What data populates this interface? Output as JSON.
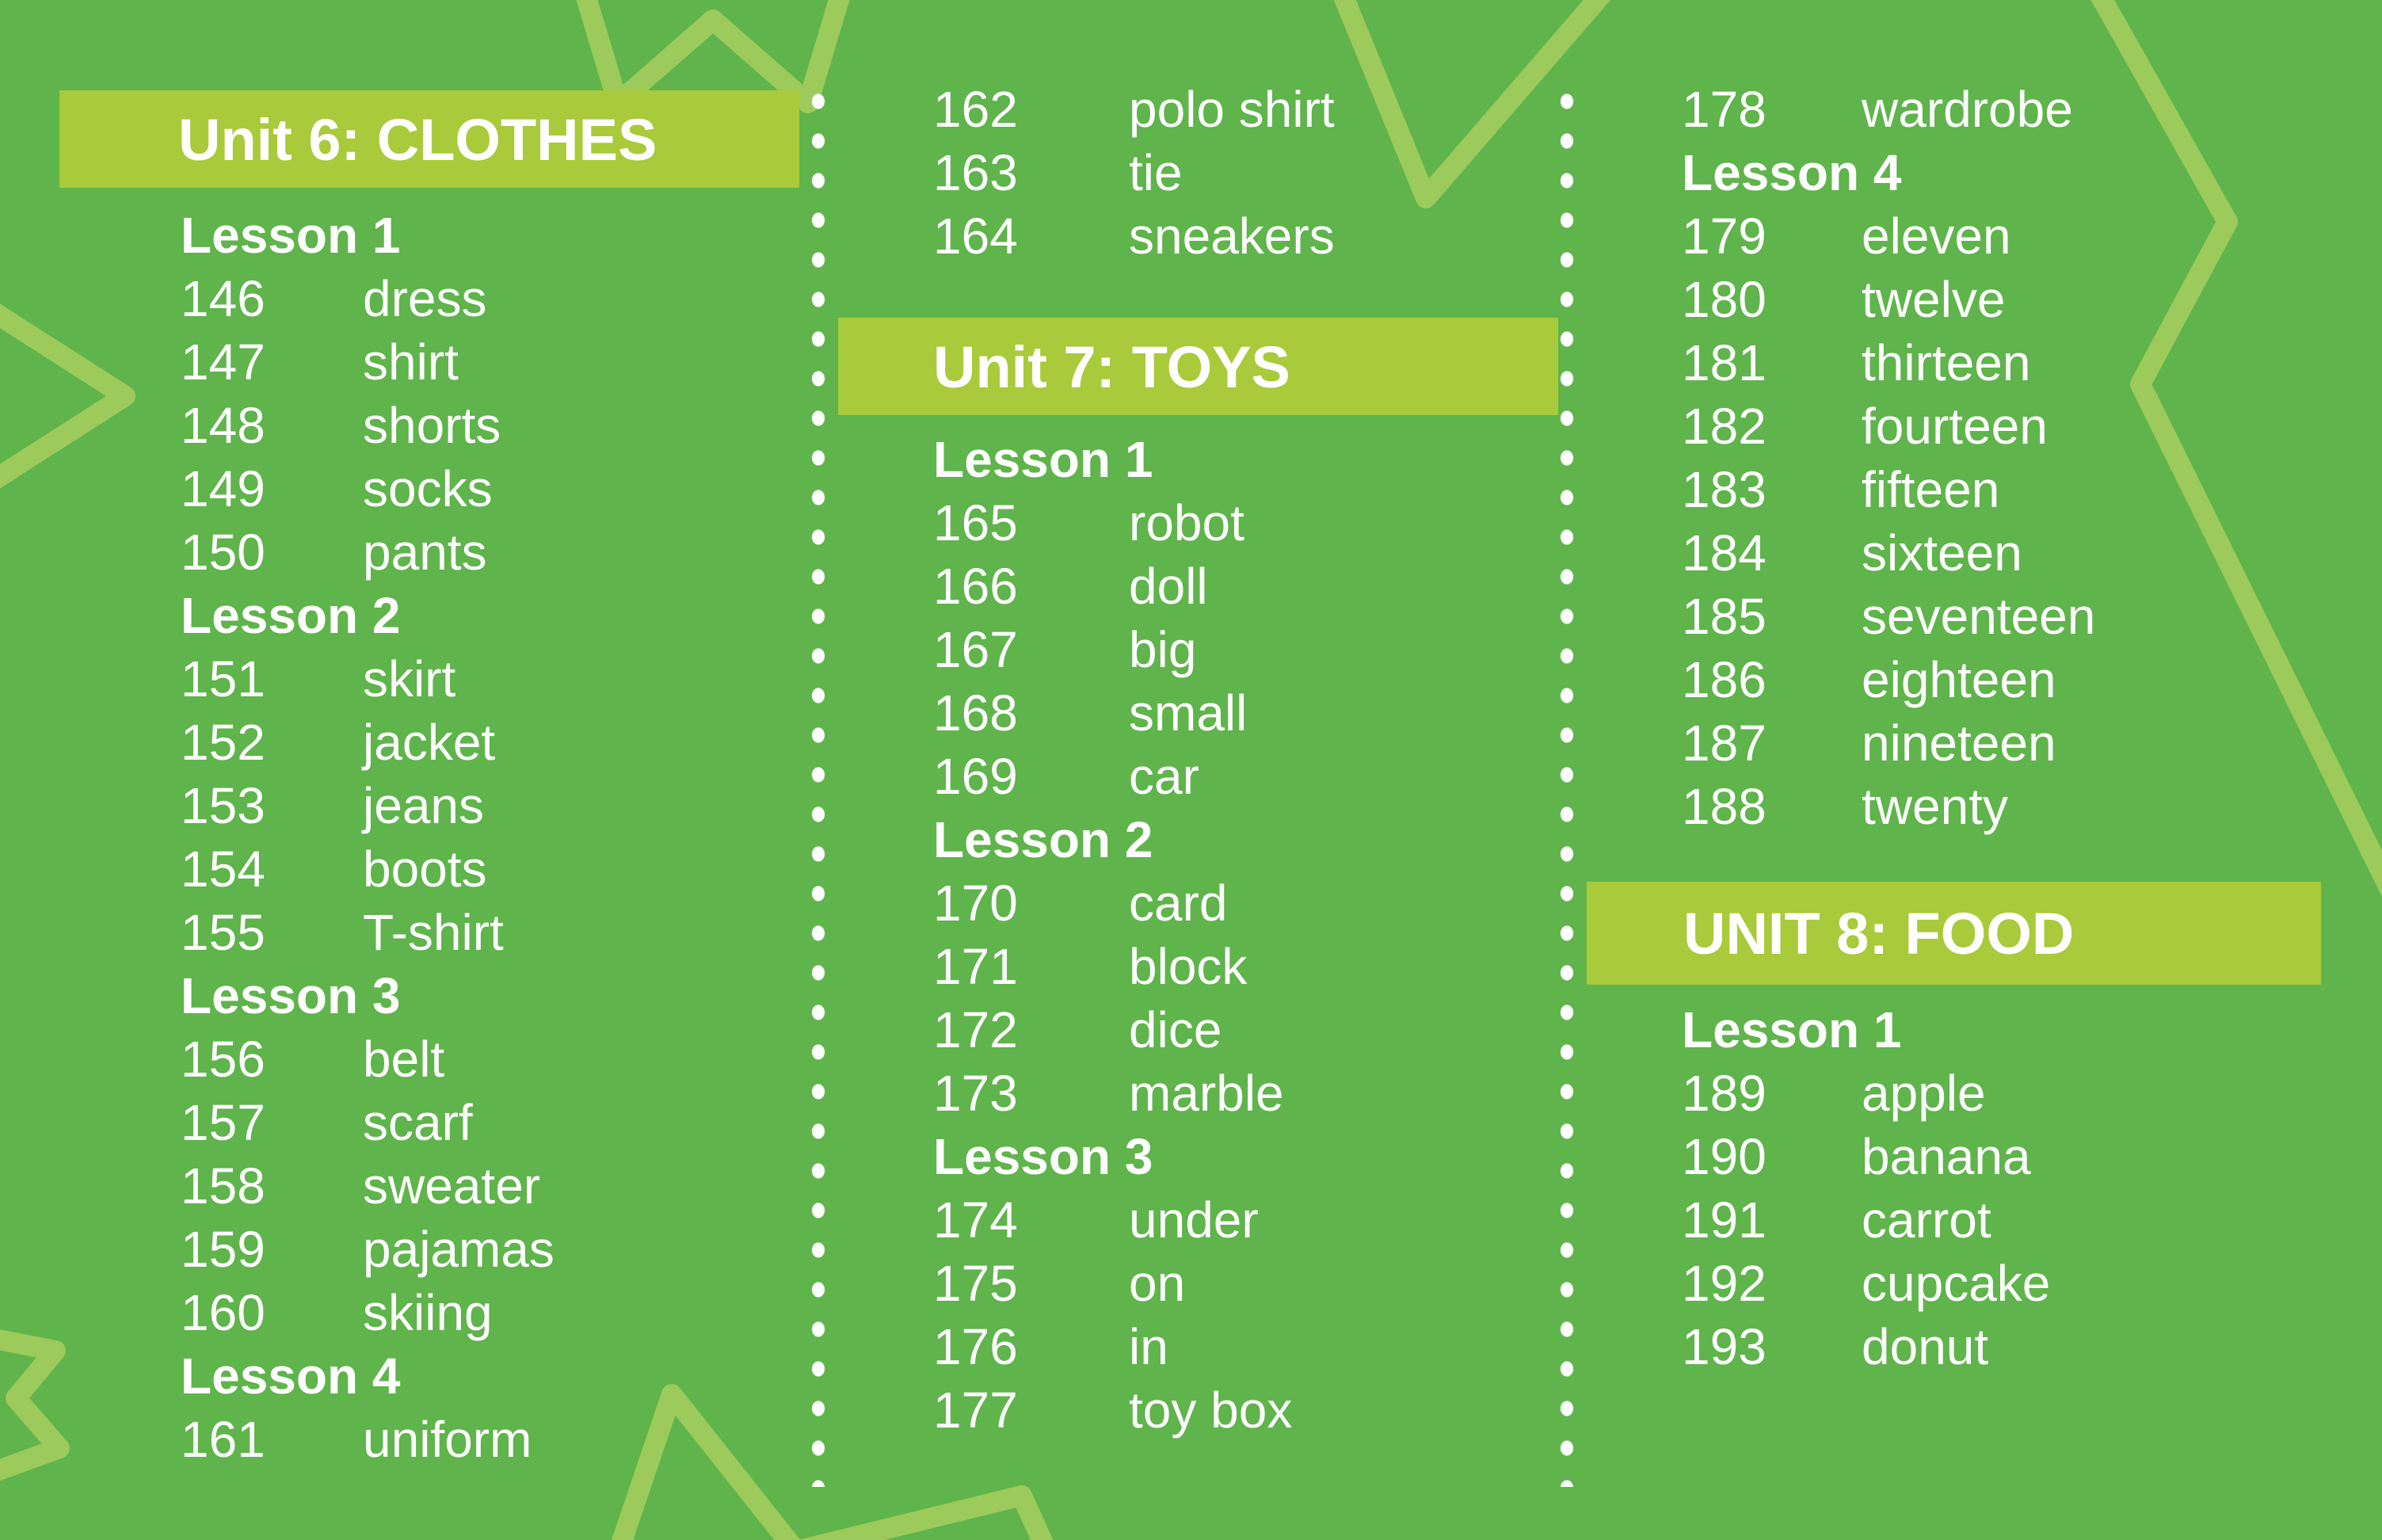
{
  "page_type": "vocabulary-index",
  "colors": {
    "background": "#5fb44b",
    "unit_bar": "#a9ca3a",
    "text": "#ffffff",
    "star_outline": "#9ccb5b",
    "divider_dots": "#ffffff"
  },
  "columns": [
    {
      "blocks": [
        {
          "type": "unit",
          "label": "Unit 6: CLOTHES"
        },
        {
          "type": "lesson",
          "label": "Lesson 1"
        },
        {
          "type": "item",
          "num": "146",
          "word": "dress"
        },
        {
          "type": "item",
          "num": "147",
          "word": "shirt"
        },
        {
          "type": "item",
          "num": "148",
          "word": "shorts"
        },
        {
          "type": "item",
          "num": "149",
          "word": "socks"
        },
        {
          "type": "item",
          "num": "150",
          "word": "pants"
        },
        {
          "type": "lesson",
          "label": "Lesson 2"
        },
        {
          "type": "item",
          "num": "151",
          "word": "skirt"
        },
        {
          "type": "item",
          "num": "152",
          "word": "jacket"
        },
        {
          "type": "item",
          "num": "153",
          "word": "jeans"
        },
        {
          "type": "item",
          "num": "154",
          "word": "boots"
        },
        {
          "type": "item",
          "num": "155",
          "word": "T-shirt"
        },
        {
          "type": "lesson",
          "label": "Lesson 3"
        },
        {
          "type": "item",
          "num": "156",
          "word": "belt"
        },
        {
          "type": "item",
          "num": "157",
          "word": "scarf"
        },
        {
          "type": "item",
          "num": "158",
          "word": "sweater"
        },
        {
          "type": "item",
          "num": "159",
          "word": "pajamas"
        },
        {
          "type": "item",
          "num": "160",
          "word": "skiing"
        },
        {
          "type": "lesson",
          "label": "Lesson 4"
        },
        {
          "type": "item",
          "num": "161",
          "word": "uniform"
        }
      ]
    },
    {
      "blocks": [
        {
          "type": "item",
          "num": "162",
          "word": "polo shirt"
        },
        {
          "type": "item",
          "num": "163",
          "word": "tie"
        },
        {
          "type": "item",
          "num": "164",
          "word": "sneakers"
        },
        {
          "type": "unit",
          "label": "Unit 7: TOYS"
        },
        {
          "type": "lesson",
          "label": "Lesson 1"
        },
        {
          "type": "item",
          "num": "165",
          "word": "robot"
        },
        {
          "type": "item",
          "num": "166",
          "word": "doll"
        },
        {
          "type": "item",
          "num": "167",
          "word": "big"
        },
        {
          "type": "item",
          "num": "168",
          "word": "small"
        },
        {
          "type": "item",
          "num": "169",
          "word": "car"
        },
        {
          "type": "lesson",
          "label": "Lesson 2"
        },
        {
          "type": "item",
          "num": "170",
          "word": "card"
        },
        {
          "type": "item",
          "num": "171",
          "word": "block"
        },
        {
          "type": "item",
          "num": "172",
          "word": "dice"
        },
        {
          "type": "item",
          "num": "173",
          "word": "marble"
        },
        {
          "type": "lesson",
          "label": "Lesson 3"
        },
        {
          "type": "item",
          "num": "174",
          "word": "under"
        },
        {
          "type": "item",
          "num": "175",
          "word": "on"
        },
        {
          "type": "item",
          "num": "176",
          "word": "in"
        },
        {
          "type": "item",
          "num": "177",
          "word": "toy box"
        }
      ]
    },
    {
      "blocks": [
        {
          "type": "item",
          "num": "178",
          "word": "wardrobe"
        },
        {
          "type": "lesson",
          "label": "Lesson 4"
        },
        {
          "type": "item",
          "num": "179",
          "word": "eleven"
        },
        {
          "type": "item",
          "num": "180",
          "word": "twelve"
        },
        {
          "type": "item",
          "num": "181",
          "word": "thirteen"
        },
        {
          "type": "item",
          "num": "182",
          "word": "fourteen"
        },
        {
          "type": "item",
          "num": "183",
          "word": "fifteen"
        },
        {
          "type": "item",
          "num": "184",
          "word": "sixteen"
        },
        {
          "type": "item",
          "num": "185",
          "word": "seventeen"
        },
        {
          "type": "item",
          "num": "186",
          "word": "eighteen"
        },
        {
          "type": "item",
          "num": "187",
          "word": "nineteen"
        },
        {
          "type": "item",
          "num": "188",
          "word": "twenty"
        },
        {
          "type": "unit",
          "label": "UNIT 8: FOOD"
        },
        {
          "type": "lesson",
          "label": "Lesson 1"
        },
        {
          "type": "item",
          "num": "189",
          "word": "apple"
        },
        {
          "type": "item",
          "num": "190",
          "word": "banana"
        },
        {
          "type": "item",
          "num": "191",
          "word": "carrot"
        },
        {
          "type": "item",
          "num": "192",
          "word": "cupcake"
        },
        {
          "type": "item",
          "num": "193",
          "word": "donut"
        }
      ]
    }
  ]
}
